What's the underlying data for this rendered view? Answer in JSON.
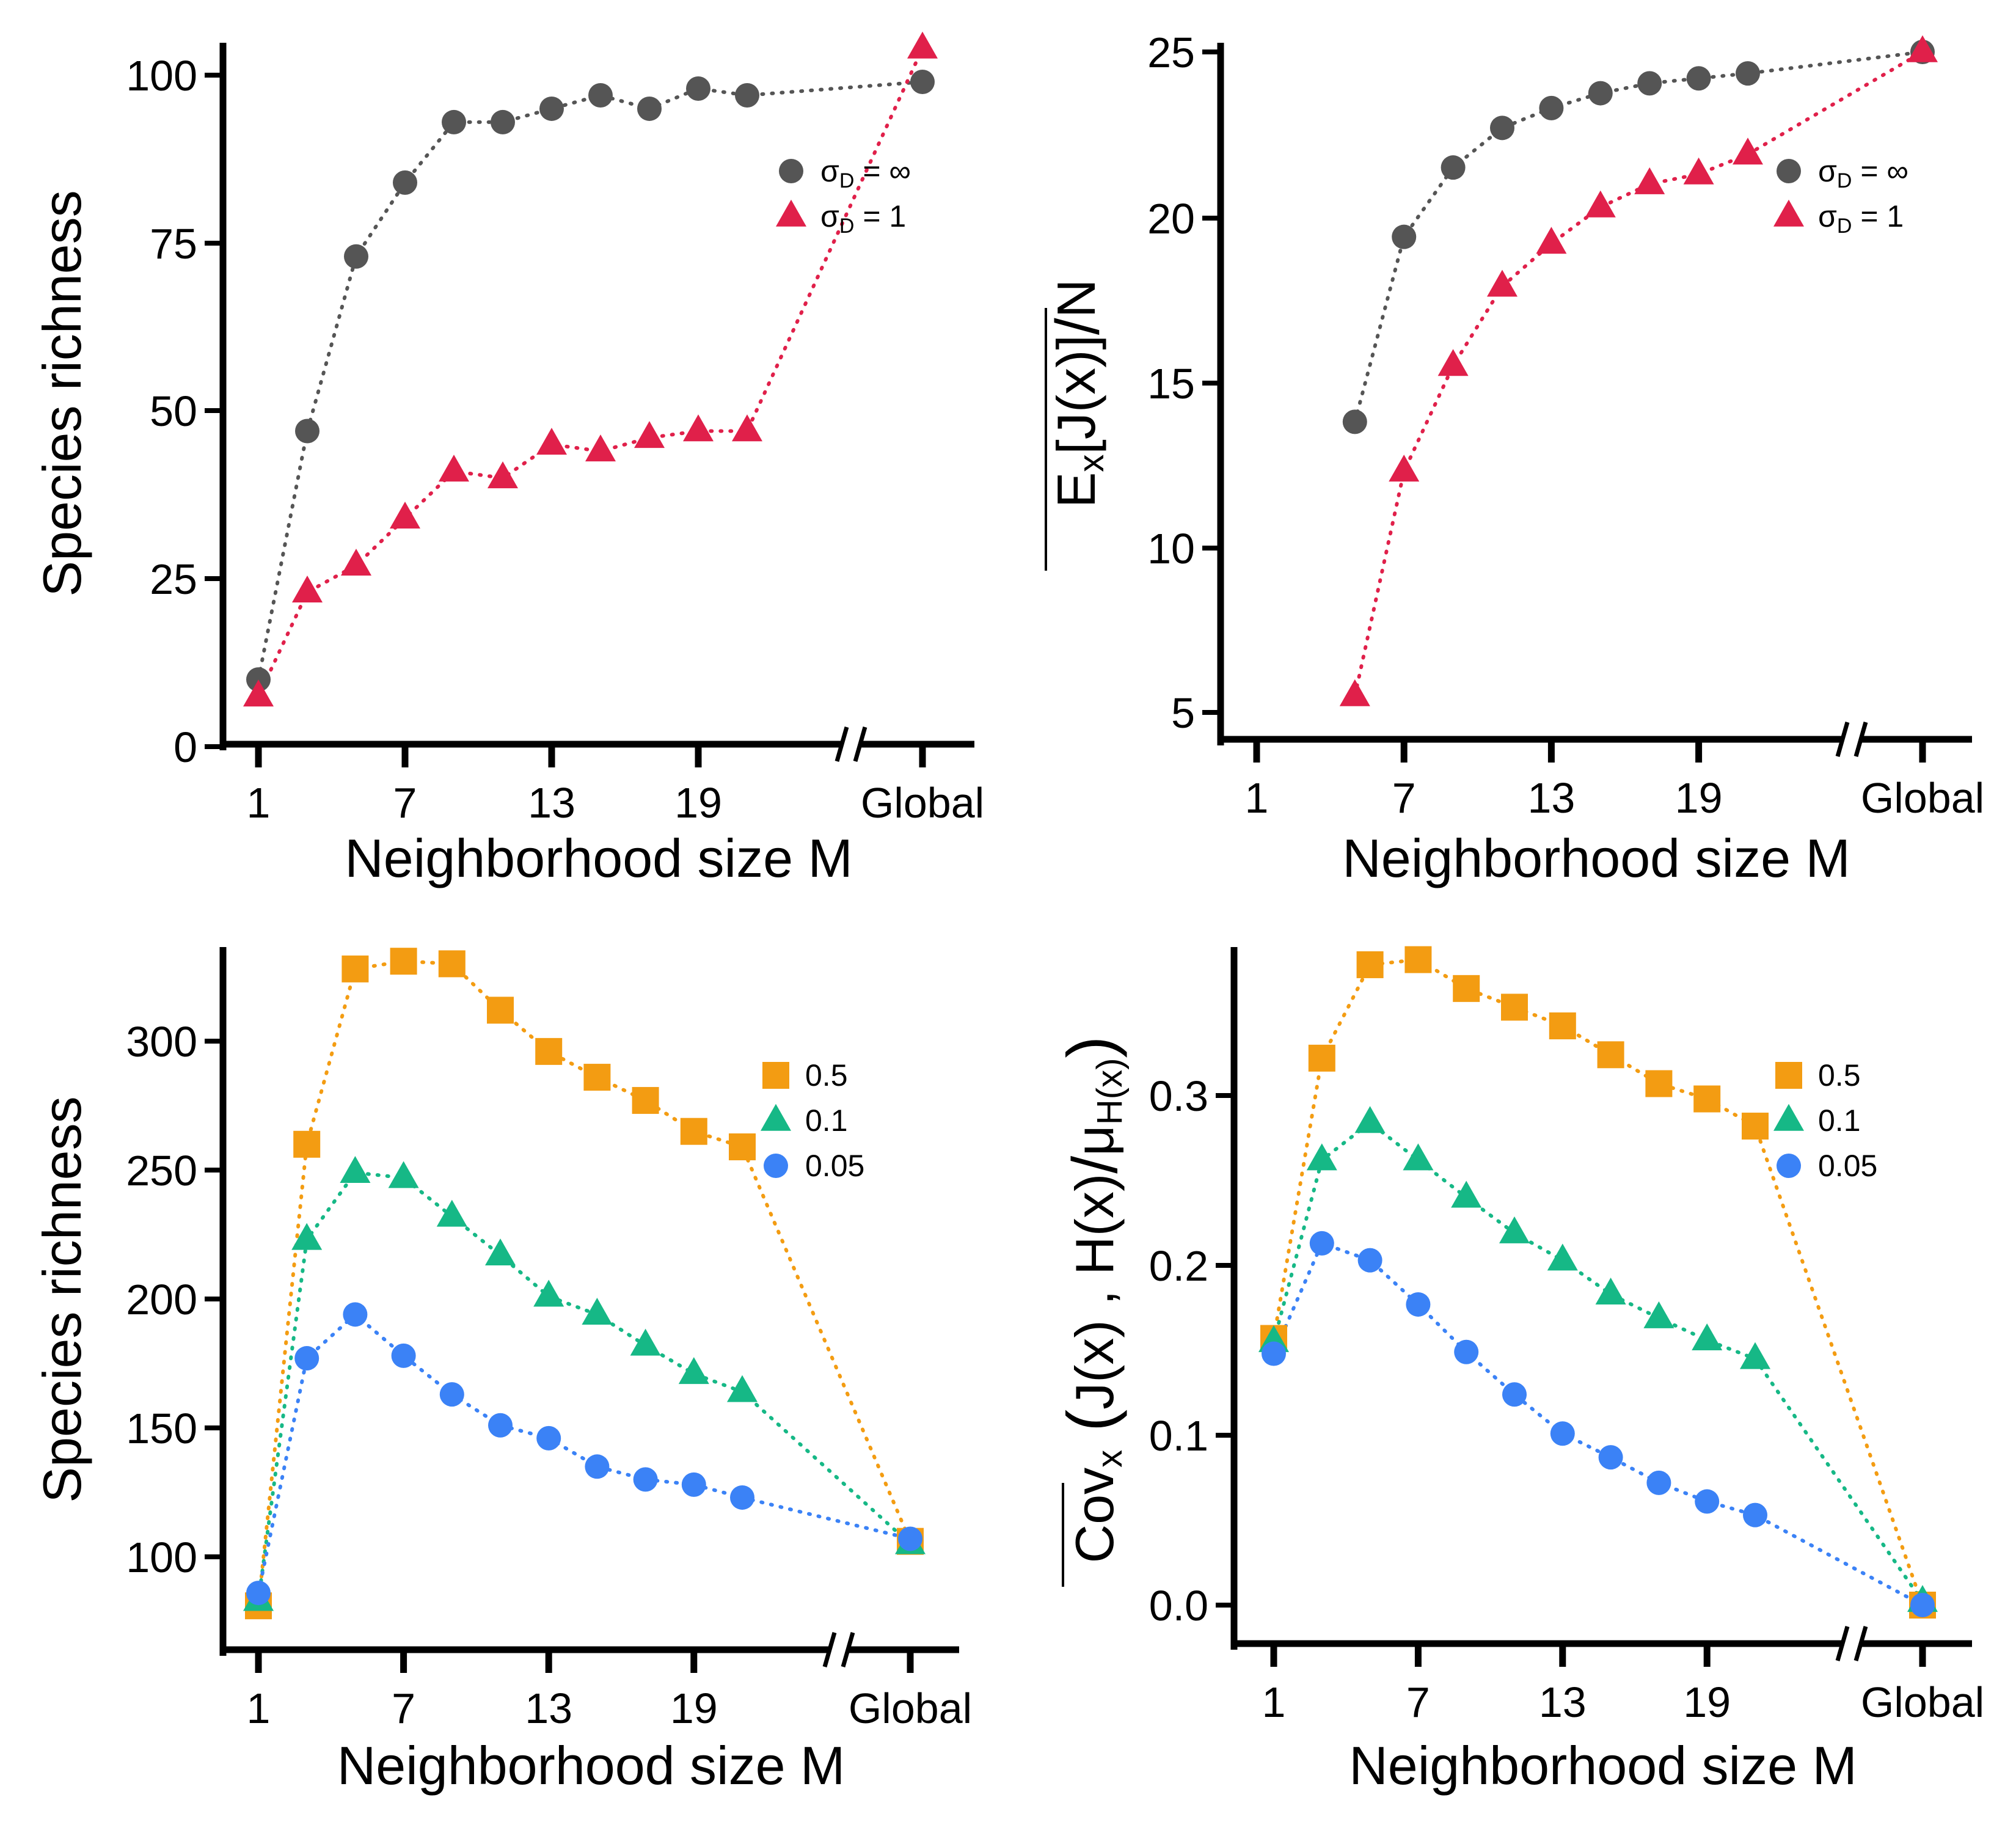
{
  "chart_data": [
    {
      "id": "top-left",
      "type": "scatter",
      "xlabel": "Neighborhood size  M",
      "ylabel": "Species richness",
      "x_ticks": [
        "1",
        "7",
        "13",
        "19",
        "Global"
      ],
      "y_ticks": [
        "0",
        "25",
        "50",
        "75",
        "100"
      ],
      "ylim": [
        0,
        106
      ],
      "axis_break": true,
      "legend_position": "top-right",
      "legend": [
        {
          "label": "σD = ∞",
          "main": "σ",
          "sub": "D",
          "rest": " = ∞"
        },
        {
          "label": "σD = 1",
          "main": "σ",
          "sub": "D",
          "rest": " = 1"
        }
      ],
      "series": [
        {
          "name": "σD = ∞",
          "marker": "circle",
          "color": "#555555",
          "points": [
            [
              1,
              10
            ],
            [
              3,
              47
            ],
            [
              5,
              73
            ],
            [
              7,
              84
            ],
            [
              9,
              93
            ],
            [
              11,
              93
            ],
            [
              13,
              95
            ],
            [
              15,
              97
            ],
            [
              17,
              95
            ],
            [
              19,
              98
            ],
            [
              21,
              97
            ],
            [
              "Global",
              99
            ]
          ]
        },
        {
          "name": "σD = 1",
          "marker": "triangle",
          "color": "#e0204a",
          "points": [
            [
              1,
              7.5
            ],
            [
              3,
              23
            ],
            [
              5,
              27
            ],
            [
              7,
              34
            ],
            [
              9,
              41
            ],
            [
              11,
              40
            ],
            [
              13,
              45
            ],
            [
              15,
              44
            ],
            [
              17,
              46
            ],
            [
              19,
              47
            ],
            [
              21,
              47
            ],
            [
              "Global",
              104
            ]
          ]
        }
      ]
    },
    {
      "id": "top-right",
      "type": "scatter",
      "xlabel": "Neighborhood size  M",
      "ylabel": "E[J(x)]/N",
      "ylabel_parts": {
        "e": "E",
        "sub": "x",
        "body": "[J(x)]",
        "slash": "/",
        "n": "N"
      },
      "x_ticks": [
        "1",
        "7",
        "13",
        "19",
        "Global"
      ],
      "y_ticks": [
        "5",
        "10",
        "15",
        "20",
        "25"
      ],
      "ylim": [
        4.2,
        25.3
      ],
      "axis_break": true,
      "legend_position": "top-right",
      "legend": [
        {
          "label": "σD = ∞",
          "main": "σ",
          "sub": "D",
          "rest": " = ∞"
        },
        {
          "label": "σD = 1",
          "main": "σ",
          "sub": "D",
          "rest": " = 1"
        }
      ],
      "series": [
        {
          "name": "σD = ∞",
          "marker": "circle",
          "color": "#555555",
          "points": [
            [
              5,
              13.8
            ],
            [
              7,
              19.4
            ],
            [
              9,
              21.5
            ],
            [
              11,
              22.7
            ],
            [
              13,
              23.3
            ],
            [
              15,
              23.75
            ],
            [
              17,
              24.05
            ],
            [
              19,
              24.2
            ],
            [
              21,
              24.35
            ],
            [
              "Global",
              25
            ]
          ]
        },
        {
          "name": "σD = 1",
          "marker": "triangle",
          "color": "#e0204a",
          "points": [
            [
              5,
              5.5
            ],
            [
              7,
              12.3
            ],
            [
              9,
              15.5
            ],
            [
              11,
              17.9
            ],
            [
              13,
              19.2
            ],
            [
              15,
              20.3
            ],
            [
              17,
              21.0
            ],
            [
              19,
              21.3
            ],
            [
              21,
              21.9
            ],
            [
              "Global",
              25
            ]
          ]
        }
      ]
    },
    {
      "id": "bottom-left",
      "type": "scatter",
      "xlabel": "Neighborhood size  M",
      "ylabel": "Species richness",
      "x_ticks": [
        "1",
        "7",
        "13",
        "19",
        "Global"
      ],
      "y_ticks": [
        "100",
        "150",
        "200",
        "250",
        "300"
      ],
      "ylim": [
        63,
        337
      ],
      "axis_break": true,
      "legend_position": "top-right",
      "legend": [
        {
          "label": "0.5"
        },
        {
          "label": "0.1"
        },
        {
          "label": "0.05"
        }
      ],
      "series": [
        {
          "name": "0.5",
          "marker": "square",
          "color": "#f39c12",
          "points": [
            [
              1,
              81
            ],
            [
              3,
              260
            ],
            [
              5,
              328
            ],
            [
              7,
              331
            ],
            [
              9,
              330
            ],
            [
              11,
              312
            ],
            [
              13,
              296
            ],
            [
              15,
              286
            ],
            [
              17,
              277
            ],
            [
              19,
              265
            ],
            [
              21,
              259
            ],
            [
              "Global",
              106
            ]
          ]
        },
        {
          "name": "0.1",
          "marker": "triangle",
          "color": "#16b886",
          "points": [
            [
              1,
              83
            ],
            [
              3,
              223
            ],
            [
              5,
              249
            ],
            [
              7,
              247
            ],
            [
              9,
              232
            ],
            [
              11,
              217
            ],
            [
              13,
              201
            ],
            [
              15,
              194
            ],
            [
              17,
              182
            ],
            [
              19,
              171
            ],
            [
              21,
              164
            ],
            [
              "Global",
              105
            ]
          ]
        },
        {
          "name": "0.05",
          "marker": "circle",
          "color": "#3b82f6",
          "points": [
            [
              1,
              86
            ],
            [
              3,
              177
            ],
            [
              5,
              194
            ],
            [
              7,
              178
            ],
            [
              9,
              163
            ],
            [
              11,
              151
            ],
            [
              13,
              146
            ],
            [
              15,
              135
            ],
            [
              17,
              130
            ],
            [
              19,
              128
            ],
            [
              21,
              123
            ],
            [
              "Global",
              107
            ]
          ]
        }
      ]
    },
    {
      "id": "bottom-right",
      "type": "scatter",
      "xlabel": "Neighborhood size  M",
      "ylabel": "Cov(J(x), H(x)/μH(x))",
      "ylabel_parts": {
        "cov": "Cov",
        "sub": "x",
        "open": "(",
        "j": "J(x)",
        "comma": ",",
        "h": "H(x)",
        "slash": "/",
        "mu": "μ",
        "musub": "H(x)",
        "close": ")"
      },
      "x_ticks": [
        "1",
        "7",
        "13",
        "19",
        "Global"
      ],
      "y_ticks": [
        "0.0",
        "0.1",
        "0.2",
        "0.3"
      ],
      "ylim": [
        -0.022,
        0.385
      ],
      "axis_break": true,
      "legend_position": "top-right",
      "legend": [
        {
          "label": "0.5"
        },
        {
          "label": "0.1"
        },
        {
          "label": "0.05"
        }
      ],
      "series": [
        {
          "name": "0.5",
          "marker": "square",
          "color": "#f39c12",
          "points": [
            [
              1,
              0.157
            ],
            [
              3,
              0.322
            ],
            [
              5,
              0.377
            ],
            [
              7,
              0.38
            ],
            [
              9,
              0.363
            ],
            [
              11,
              0.352
            ],
            [
              13,
              0.341
            ],
            [
              15,
              0.324
            ],
            [
              17,
              0.307
            ],
            [
              19,
              0.298
            ],
            [
              21,
              0.282
            ],
            [
              "Global",
              0.0
            ]
          ]
        },
        {
          "name": "0.1",
          "marker": "triangle",
          "color": "#16b886",
          "points": [
            [
              1,
              0.155
            ],
            [
              3,
              0.262
            ],
            [
              5,
              0.284
            ],
            [
              7,
              0.262
            ],
            [
              9,
              0.24
            ],
            [
              11,
              0.219
            ],
            [
              13,
              0.203
            ],
            [
              15,
              0.183
            ],
            [
              17,
              0.169
            ],
            [
              19,
              0.156
            ],
            [
              21,
              0.145
            ],
            [
              "Global",
              0.002
            ]
          ]
        },
        {
          "name": "0.05",
          "marker": "circle",
          "color": "#3b82f6",
          "points": [
            [
              1,
              0.148
            ],
            [
              3,
              0.213
            ],
            [
              5,
              0.203
            ],
            [
              7,
              0.177
            ],
            [
              9,
              0.149
            ],
            [
              11,
              0.124
            ],
            [
              13,
              0.101
            ],
            [
              15,
              0.087
            ],
            [
              17,
              0.072
            ],
            [
              19,
              0.061
            ],
            [
              21,
              0.053
            ],
            [
              "Global",
              0.0
            ]
          ]
        }
      ]
    }
  ]
}
